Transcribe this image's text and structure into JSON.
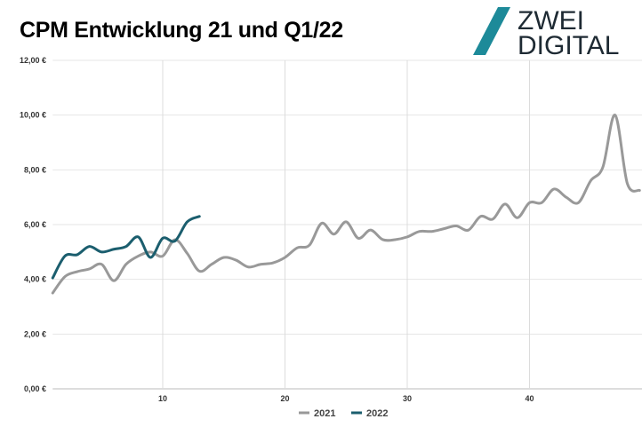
{
  "title": "CPM Entwicklung 21 und Q1/22",
  "logo": {
    "line1": "ZWEI",
    "line2": "DIGITAL",
    "accent": "#1d8a99"
  },
  "chart_data": {
    "type": "line",
    "title": "CPM Entwicklung 21 und Q1/22",
    "xlim": [
      1,
      49
    ],
    "ylim": [
      0,
      12
    ],
    "x_ticks": [
      10,
      20,
      30,
      40
    ],
    "y_ticks": [
      0,
      2,
      4,
      6,
      8,
      10,
      12
    ],
    "y_tick_labels": [
      "0,00 €",
      "2,00 €",
      "4,00 €",
      "6,00 €",
      "8,00 €",
      "10,00 €",
      "12,00 €"
    ],
    "grid": true,
    "legend_position": "bottom",
    "series": [
      {
        "name": "2021",
        "color": "#999999",
        "x": [
          1,
          2,
          3,
          4,
          5,
          6,
          7,
          8,
          9,
          10,
          11,
          12,
          13,
          14,
          15,
          16,
          17,
          18,
          19,
          20,
          21,
          22,
          23,
          24,
          25,
          26,
          27,
          28,
          29,
          30,
          31,
          32,
          33,
          34,
          35,
          36,
          37,
          38,
          39,
          40,
          41,
          42,
          43,
          44,
          45,
          46,
          47,
          48,
          49
        ],
        "values": [
          3.5,
          4.1,
          4.28,
          4.38,
          4.55,
          3.95,
          4.55,
          4.85,
          5.0,
          4.85,
          5.45,
          4.95,
          4.3,
          4.55,
          4.8,
          4.7,
          4.45,
          4.55,
          4.6,
          4.8,
          5.15,
          5.25,
          6.05,
          5.65,
          6.1,
          5.5,
          5.8,
          5.45,
          5.45,
          5.55,
          5.75,
          5.75,
          5.85,
          5.95,
          5.8,
          6.3,
          6.2,
          6.75,
          6.25,
          6.8,
          6.8,
          7.3,
          7.0,
          6.8,
          7.6,
          8.1,
          10.0,
          7.5,
          7.25
        ]
      },
      {
        "name": "2022",
        "color": "#1b5e6e",
        "x": [
          1,
          2,
          3,
          4,
          5,
          6,
          7,
          8,
          9,
          10,
          11,
          12,
          13
        ],
        "values": [
          4.05,
          4.85,
          4.9,
          5.2,
          5.0,
          5.1,
          5.2,
          5.55,
          4.8,
          5.5,
          5.4,
          6.1,
          6.3
        ]
      }
    ]
  }
}
